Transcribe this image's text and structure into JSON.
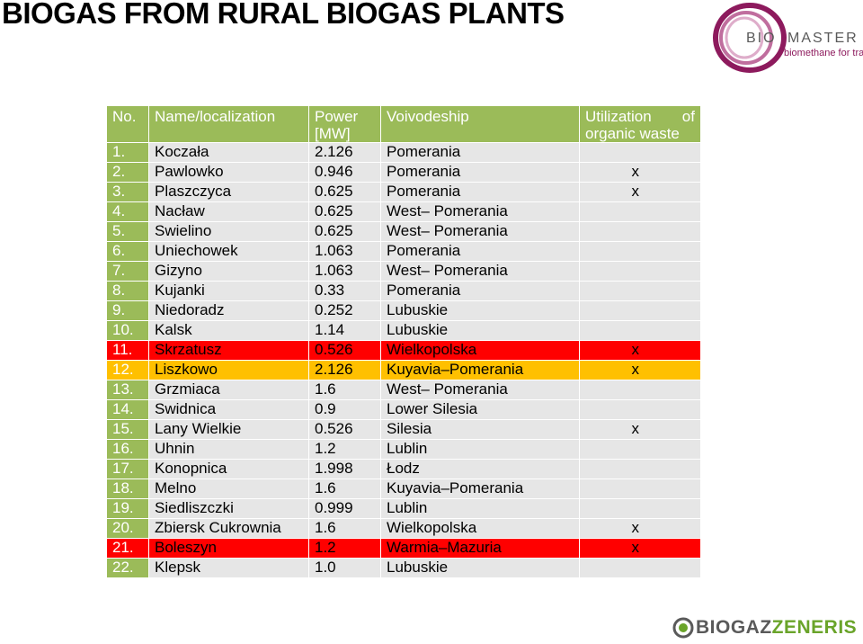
{
  "title": "BIOGAS FROM RURAL BIOGAS PLANTS",
  "logo_top": {
    "part1": "BIO",
    "part2": "MASTER",
    "tagline": "biomethane for transport"
  },
  "logo_bottom": {
    "part1": "BIOGAZ",
    "part2": "ZENERIS"
  },
  "colors": {
    "header_green": "#9bbb59",
    "row_gray": "#e6e6e6",
    "highlight_red": "#ff0000",
    "highlight_orange": "#ffc000"
  },
  "table": {
    "headers": {
      "no": "No.",
      "name": "Name/localization",
      "power": "Power [MW]",
      "voivodeship": "Voivodeship",
      "utilization": "Utilization of organic waste"
    },
    "rows": [
      {
        "no": "1.",
        "name": "Koczała",
        "power": "2.126",
        "voivodeship": "Pomerania",
        "util": "",
        "hl": "g"
      },
      {
        "no": "2.",
        "name": "Pawlowko",
        "power": "0.946",
        "voivodeship": "Pomerania",
        "util": "x",
        "hl": "g"
      },
      {
        "no": "3.",
        "name": "Plaszczyca",
        "power": "0.625",
        "voivodeship": "Pomerania",
        "util": "x",
        "hl": "g"
      },
      {
        "no": "4.",
        "name": "Nacław",
        "power": "0.625",
        "voivodeship": "West– Pomerania",
        "util": "",
        "hl": "g"
      },
      {
        "no": "5.",
        "name": "Swielino",
        "power": "0.625",
        "voivodeship": "West– Pomerania",
        "util": "",
        "hl": "g"
      },
      {
        "no": "6.",
        "name": "Uniechowek",
        "power": "1.063",
        "voivodeship": "Pomerania",
        "util": "",
        "hl": "g"
      },
      {
        "no": "7.",
        "name": "Gizyno",
        "power": "1.063",
        "voivodeship": "West– Pomerania",
        "util": "",
        "hl": "g"
      },
      {
        "no": "8.",
        "name": "Kujanki",
        "power": "0.33",
        "voivodeship": "Pomerania",
        "util": "",
        "hl": "g"
      },
      {
        "no": "9.",
        "name": "Niedoradz",
        "power": "0.252",
        "voivodeship": "Lubuskie",
        "util": "",
        "hl": "g"
      },
      {
        "no": "10.",
        "name": "Kalsk",
        "power": "1.14",
        "voivodeship": "Lubuskie",
        "util": "",
        "hl": "g"
      },
      {
        "no": "11.",
        "name": "Skrzatusz",
        "power": "0.526",
        "voivodeship": "Wielkopolska",
        "util": "x",
        "hl": "r"
      },
      {
        "no": "12.",
        "name": "Liszkowo",
        "power": "2.126",
        "voivodeship": "Kuyavia–Pomerania",
        "util": "x",
        "hl": "y"
      },
      {
        "no": "13.",
        "name": "Grzmiaca",
        "power": "1.6",
        "voivodeship": "West– Pomerania",
        "util": "",
        "hl": "g"
      },
      {
        "no": "14.",
        "name": "Swidnica",
        "power": "0.9",
        "voivodeship": "Lower Silesia",
        "util": "",
        "hl": "g"
      },
      {
        "no": "15.",
        "name": "Lany Wielkie",
        "power": "0.526",
        "voivodeship": "Silesia",
        "util": "x",
        "hl": "g"
      },
      {
        "no": "16.",
        "name": "Uhnin",
        "power": "1.2",
        "voivodeship": "Lublin",
        "util": "",
        "hl": "g"
      },
      {
        "no": "17.",
        "name": "Konopnica",
        "power": "1.998",
        "voivodeship": "Łodz",
        "util": "",
        "hl": "g"
      },
      {
        "no": "18.",
        "name": "Melno",
        "power": "1.6",
        "voivodeship": "Kuyavia–Pomerania",
        "util": "",
        "hl": "g"
      },
      {
        "no": "19.",
        "name": "Siedliszczki",
        "power": "0.999",
        "voivodeship": "Lublin",
        "util": "",
        "hl": "g"
      },
      {
        "no": "20.",
        "name": "Zbiersk Cukrownia",
        "power": "1.6",
        "voivodeship": "Wielkopolska",
        "util": "x",
        "hl": "g"
      },
      {
        "no": "21.",
        "name": "Boleszyn",
        "power": "1.2",
        "voivodeship": "Warmia–Mazuria",
        "util": "x",
        "hl": "r"
      },
      {
        "no": "22.",
        "name": "Klepsk",
        "power": "1.0",
        "voivodeship": "Lubuskie",
        "util": "",
        "hl": "g"
      }
    ]
  }
}
